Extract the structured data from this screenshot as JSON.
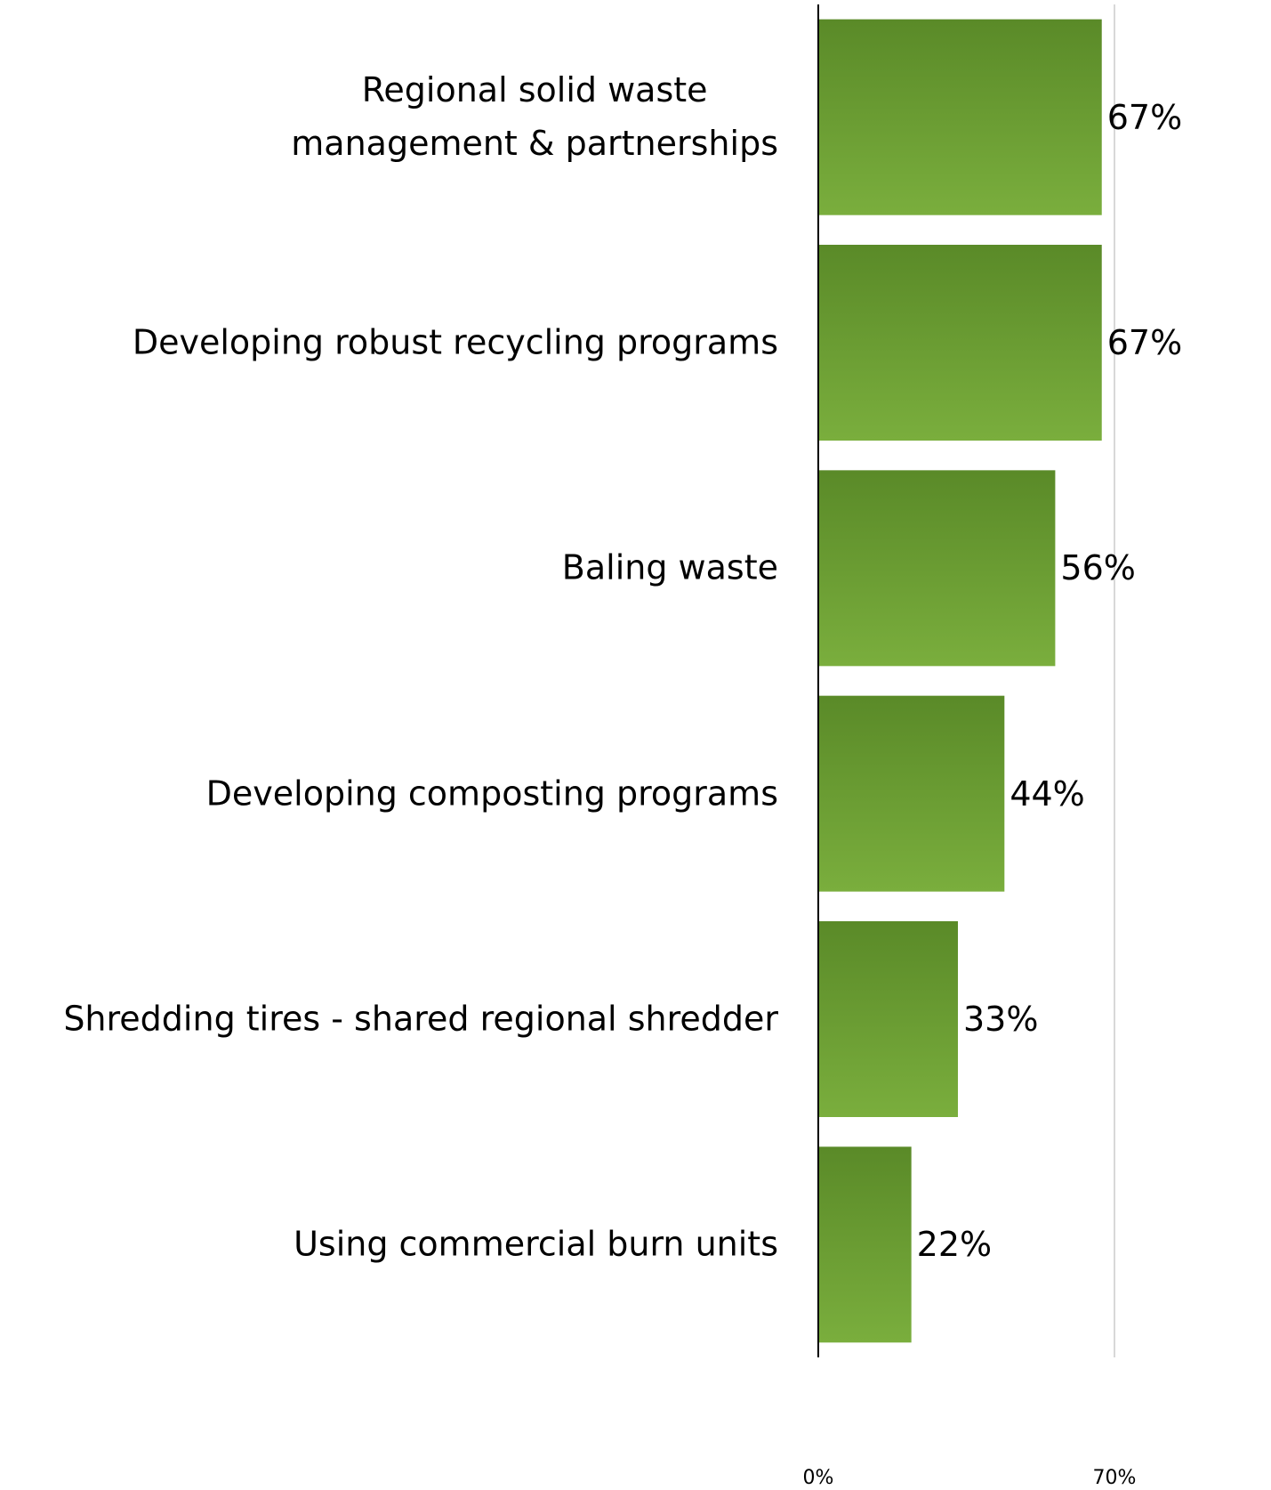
{
  "chart_data": {
    "type": "hbar",
    "categories": [
      "Regional solid waste\nmanagement & partnerships",
      "Developing robust recycling programs",
      "Baling waste",
      "Developing composting programs",
      "Shredding tires - shared regional shredder",
      "Using commercial burn units"
    ],
    "values": [
      67,
      67,
      56,
      44,
      33,
      22
    ],
    "value_labels": [
      "67%",
      "67%",
      "56%",
      "44%",
      "33%",
      "22%"
    ],
    "color": [
      "#5a8a28",
      "#7aae3d"
    ],
    "xlim": [
      0,
      70
    ],
    "xticks": [
      {
        "value": 0,
        "label": "0%"
      },
      {
        "value": 70,
        "label": "70%"
      }
    ],
    "grid": true
  }
}
